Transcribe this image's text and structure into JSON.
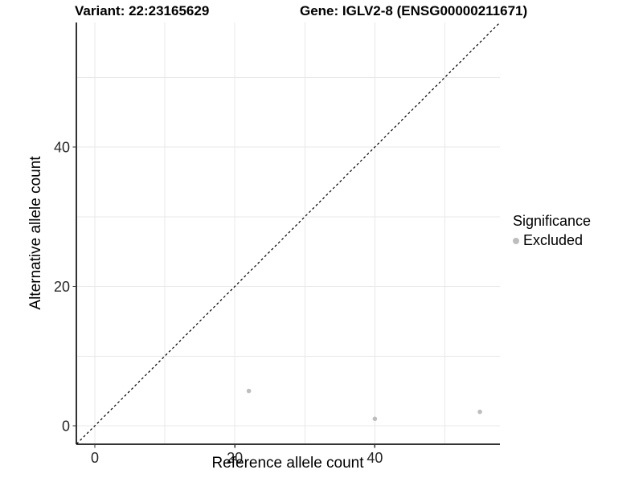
{
  "header": {
    "variant_title": "Variant: 22:23165629",
    "gene_title": "Gene: IGLV2-8 (ENSG00000211671)"
  },
  "chart_data": {
    "type": "scatter",
    "xlabel": "Reference allele count",
    "ylabel": "Alternative allele count",
    "xticks": [
      0,
      20,
      40
    ],
    "yticks": [
      0,
      20,
      40
    ],
    "xlim": [
      -2.6,
      57.9
    ],
    "ylim": [
      -2.6,
      57.9
    ],
    "grid": true,
    "grid_interval": 10,
    "legend_position": "right",
    "identity_line": {
      "style": "dashed",
      "color": "#000000",
      "slope": 1,
      "intercept": 0
    },
    "series": [
      {
        "name": "Excluded",
        "color": "#bebebe",
        "points": [
          {
            "x": 22,
            "y": 5
          },
          {
            "x": 40,
            "y": 1
          },
          {
            "x": 55,
            "y": 2
          }
        ]
      }
    ]
  },
  "legend": {
    "title": "Significance",
    "items": [
      {
        "label": "Excluded",
        "color": "#bebebe"
      }
    ]
  },
  "colors": {
    "grid": "#e8e8e8",
    "axis": "#333333",
    "tick_text": "#262626"
  }
}
